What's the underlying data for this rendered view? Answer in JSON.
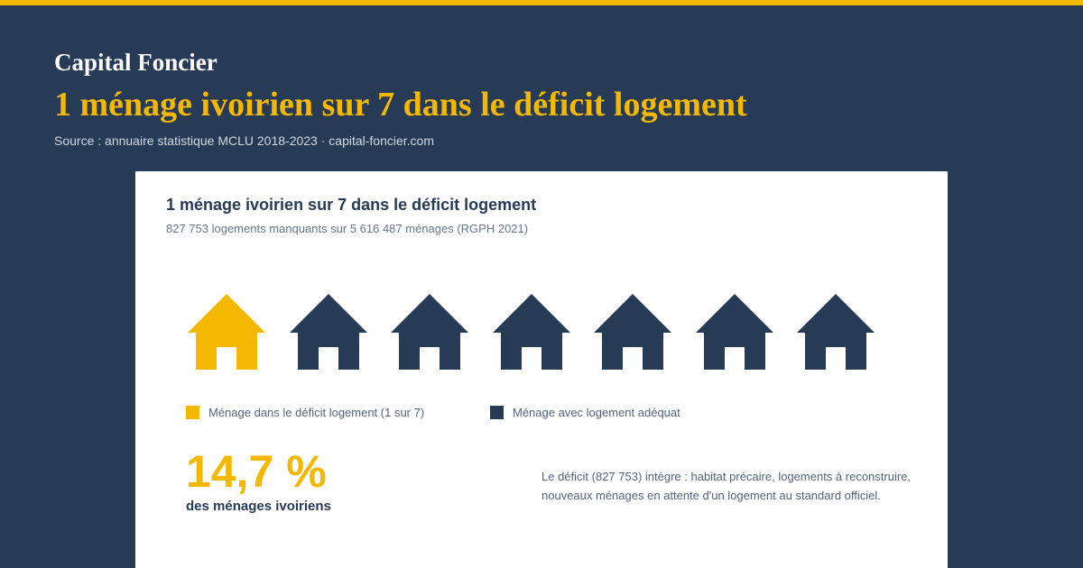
{
  "header": {
    "brand": "Capital Foncier",
    "headline": "1 ménage ivoirien sur 7 dans le déficit logement",
    "source": "Source : annuaire statistique MCLU 2018-2023 · capital-foncier.com"
  },
  "chart_data": {
    "type": "pictogram",
    "title": "1 ménage ivoirien sur 7 dans le déficit logement",
    "subtitle": "827 753 logements manquants sur 5 616 487 ménages (RGPH 2021)",
    "total_units": 7,
    "highlighted_units": 1,
    "legend": [
      {
        "label": "Ménage dans le déficit logement (1 sur 7)",
        "color": "#f5b800"
      },
      {
        "label": "Ménage avec logement adéquat",
        "color": "#273b56"
      }
    ],
    "stat": {
      "value": "14,7 %",
      "caption": "des ménages ivoiriens"
    },
    "note": "Le déficit (827 753) intègre : habitat précaire, logements à reconstruire, nouveaux ménages en attente d'un logement au standard officiel."
  },
  "icons": {
    "unit": "house-icon"
  }
}
